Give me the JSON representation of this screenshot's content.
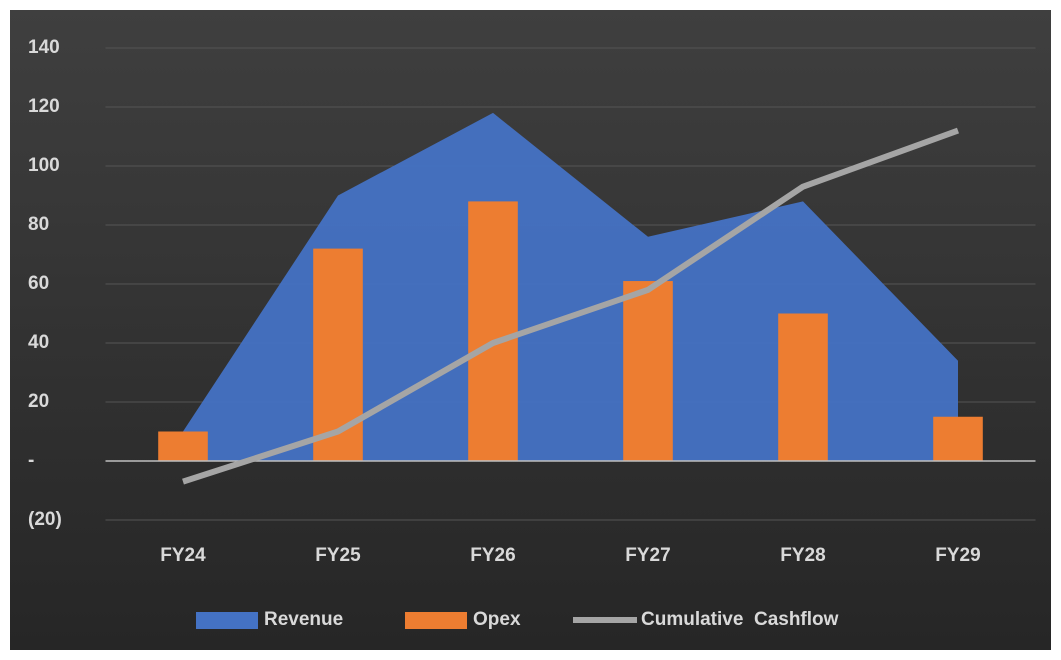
{
  "chart_data": {
    "type": "combo",
    "categories": [
      "FY24",
      "FY25",
      "FY26",
      "FY27",
      "FY28",
      "FY29"
    ],
    "series": [
      {
        "name": "Revenue",
        "type": "area",
        "color": "#4472c4",
        "values": [
          10,
          90,
          118,
          76,
          88,
          34
        ]
      },
      {
        "name": "Opex",
        "type": "bar",
        "color": "#ed7d31",
        "values": [
          10,
          72,
          88,
          61,
          50,
          15
        ]
      },
      {
        "name": "Cumulative  Cashflow",
        "type": "line",
        "color": "#a5a5a5",
        "values": [
          -7,
          10,
          40,
          58,
          93,
          112
        ]
      }
    ],
    "ylim": [
      -20,
      140
    ],
    "yticks": [
      {
        "value": -20,
        "label": "(20)"
      },
      {
        "value": 0,
        "label": "-"
      },
      20,
      40,
      60,
      80,
      100,
      120,
      140
    ],
    "grid": true,
    "legend": "bottom"
  }
}
